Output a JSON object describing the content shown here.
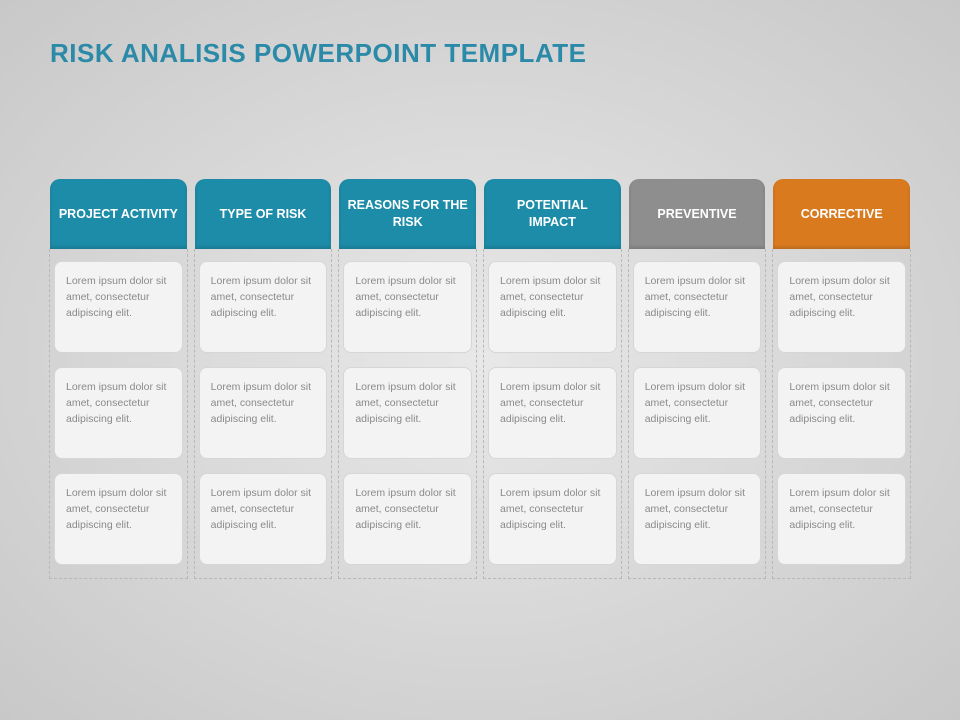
{
  "title": "RISK ANALISIS POWERPOINT TEMPLATE",
  "title_color": "#2a8aa8",
  "background_gradient_center": "#e8e8e8",
  "background_gradient_edge": "#c8c8c8",
  "header_fontsize": 12.5,
  "header_text_color": "#ffffff",
  "cell_bg": "#f3f3f3",
  "cell_border": "#d6d6d6",
  "cell_text_color": "#8a8a8a",
  "cell_fontsize": 10.5,
  "dashed_border_color": "#b8b8b8",
  "placeholder_text": "Lorem ipsum dolor sit amet, consectetur adipiscing elit.",
  "columns": [
    {
      "label": "PROJECT ACTIVITY",
      "color": "#1d8ca8"
    },
    {
      "label": "TYPE OF RISK",
      "color": "#1d8ca8"
    },
    {
      "label": "REASONS FOR THE RISK",
      "color": "#1d8ca8"
    },
    {
      "label": "POTENTIAL IMPACT",
      "color": "#1d8ca8"
    },
    {
      "label": "PREVENTIVE",
      "color": "#8e8e8e"
    },
    {
      "label": "CORRECTIVE",
      "color": "#d97a1f"
    }
  ],
  "rows_per_column": 3
}
